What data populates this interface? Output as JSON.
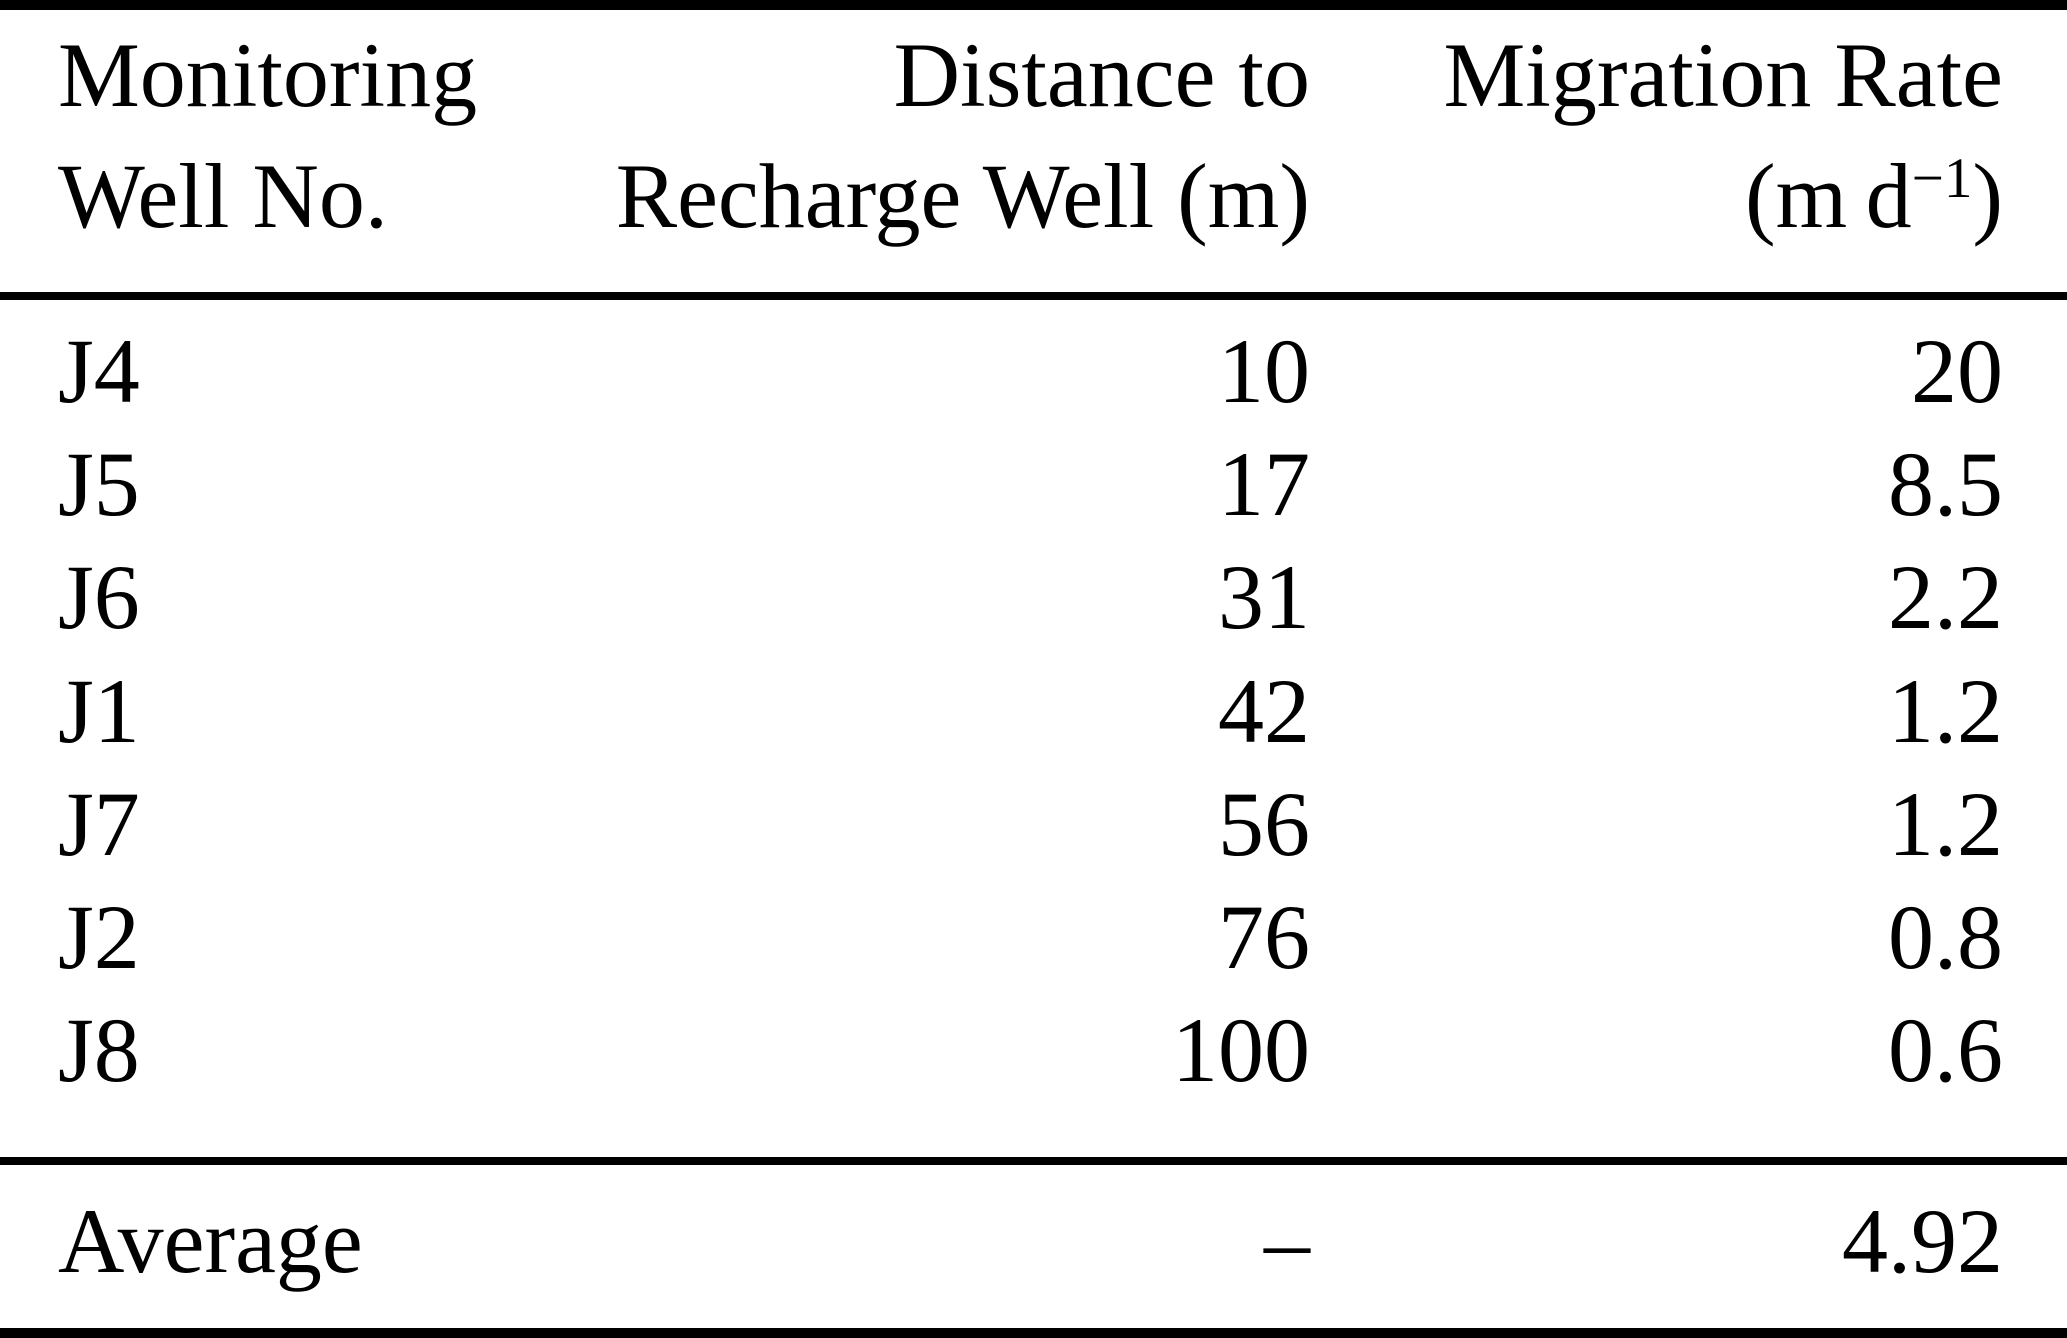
{
  "table": {
    "header": {
      "col1_line1": "Monitoring",
      "col1_line2": "Well No.",
      "col2_line1": "Distance to",
      "col2_line2": "Recharge Well (m)",
      "col3_line1": "Migration Rate",
      "col3_unit_prefix": "(m d",
      "col3_unit_sup": "−1",
      "col3_unit_suffix": ")"
    },
    "rows": [
      {
        "well": "J4",
        "distance": "10",
        "rate": "20"
      },
      {
        "well": "J5",
        "distance": "17",
        "rate": "8.5"
      },
      {
        "well": "J6",
        "distance": "31",
        "rate": "2.2"
      },
      {
        "well": "J1",
        "distance": "42",
        "rate": "1.2"
      },
      {
        "well": "J7",
        "distance": "56",
        "rate": "1.2"
      },
      {
        "well": "J2",
        "distance": "76",
        "rate": "0.8"
      },
      {
        "well": "J8",
        "distance": "100",
        "rate": "0.6"
      }
    ],
    "footer": {
      "label": "Average",
      "distance": "–",
      "rate": "4.92"
    }
  },
  "colors": {
    "text": "#000000",
    "background": "#ffffff",
    "rule": "#000000"
  },
  "chart_data": {
    "type": "table",
    "columns": [
      "Monitoring Well No.",
      "Distance to Recharge Well (m)",
      "Migration Rate (m d−1)"
    ],
    "rows": [
      [
        "J4",
        10,
        20
      ],
      [
        "J5",
        17,
        8.5
      ],
      [
        "J6",
        31,
        2.2
      ],
      [
        "J1",
        42,
        1.2
      ],
      [
        "J7",
        56,
        1.2
      ],
      [
        "J2",
        76,
        0.8
      ],
      [
        "J8",
        100,
        0.6
      ],
      [
        "Average",
        null,
        4.92
      ]
    ]
  }
}
